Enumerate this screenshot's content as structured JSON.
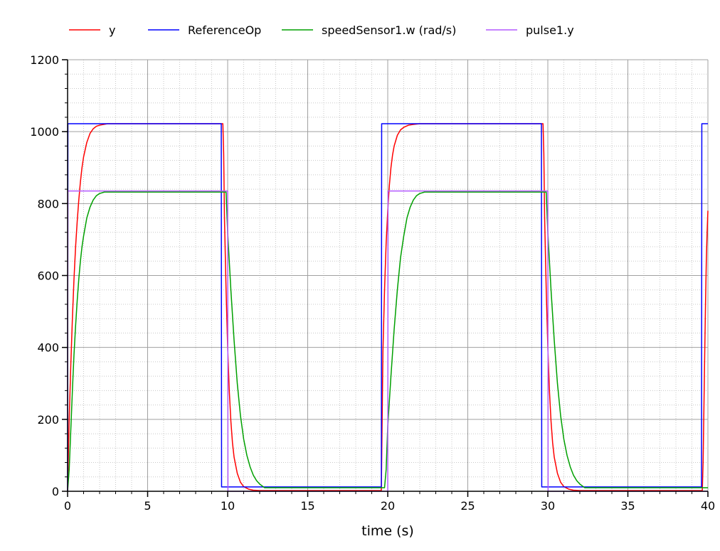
{
  "chart_data": {
    "type": "line",
    "title": "",
    "xlabel": "time (s)",
    "ylabel": "",
    "xlim": [
      0,
      40
    ],
    "ylim": [
      0,
      1200
    ],
    "x_ticks": [
      0,
      5,
      10,
      15,
      20,
      25,
      30,
      35,
      40
    ],
    "y_ticks": [
      0,
      200,
      400,
      600,
      800,
      1000,
      1200
    ],
    "x_tick_labels": [
      "0",
      "5",
      "10",
      "15",
      "20",
      "25",
      "30",
      "35",
      "40"
    ],
    "y_tick_labels": [
      "0",
      "200",
      "400",
      "600",
      "800",
      "1000",
      "1200"
    ],
    "grid": true,
    "legend_position": "top",
    "series": [
      {
        "name": "y",
        "color": "#ff0000",
        "x": [
          0,
          0.1,
          0.2,
          0.3,
          0.4,
          0.5,
          0.6,
          0.7,
          0.8,
          0.9,
          1.0,
          1.2,
          1.4,
          1.6,
          1.8,
          2.0,
          2.5,
          9.7,
          9.75,
          9.8,
          9.9,
          10.0,
          10.1,
          10.2,
          10.3,
          10.4,
          10.6,
          10.8,
          11.0,
          11.3,
          11.6,
          12.0,
          19.6,
          19.65,
          19.7,
          19.8,
          19.9,
          20.0,
          20.1,
          20.2,
          20.3,
          20.4,
          20.6,
          20.8,
          21.0,
          21.3,
          21.6,
          22.0,
          22.5,
          29.7,
          29.75,
          29.8,
          29.9,
          30.0,
          30.1,
          30.2,
          30.3,
          30.4,
          30.6,
          30.8,
          31.0,
          31.3,
          31.6,
          32.0,
          39.65,
          39.7,
          39.75,
          39.8,
          39.85,
          39.9,
          39.95,
          40.0
        ],
        "y": [
          0,
          200,
          350,
          480,
          590,
          680,
          750,
          810,
          860,
          900,
          930,
          970,
          995,
          1008,
          1015,
          1018,
          1022,
          1022,
          940,
          760,
          560,
          400,
          280,
          195,
          135,
          95,
          50,
          25,
          13,
          6,
          3,
          2,
          2,
          200,
          390,
          560,
          690,
          780,
          850,
          900,
          935,
          960,
          990,
          1005,
          1012,
          1018,
          1020,
          1022,
          1022,
          1022,
          940,
          760,
          560,
          400,
          280,
          195,
          135,
          95,
          50,
          25,
          13,
          6,
          3,
          2,
          2,
          80,
          230,
          380,
          520,
          640,
          720,
          780
        ]
      },
      {
        "name": "ReferenceOp",
        "color": "#0000ff",
        "x": [
          0,
          0.02,
          0.08,
          9.6,
          9.62,
          9.7,
          19.6,
          19.62,
          19.7,
          29.6,
          29.62,
          29.7,
          39.6,
          39.62,
          39.7,
          40.0
        ],
        "y": [
          0,
          1022,
          1022,
          1022,
          12,
          12,
          12,
          1022,
          1022,
          1022,
          12,
          12,
          12,
          1022,
          1022,
          1022
        ]
      },
      {
        "name": "speedSensor1.w (rad/s)",
        "color": "#00a000",
        "x": [
          0,
          0.1,
          0.2,
          0.3,
          0.4,
          0.5,
          0.6,
          0.7,
          0.8,
          0.9,
          1.0,
          1.2,
          1.4,
          1.6,
          1.8,
          2.0,
          2.3,
          9.9,
          10.0,
          10.2,
          10.4,
          10.6,
          10.8,
          11.0,
          11.2,
          11.4,
          11.6,
          11.8,
          12.0,
          12.3,
          19.8,
          19.9,
          20.0,
          20.2,
          20.4,
          20.6,
          20.8,
          21.0,
          21.2,
          21.4,
          21.6,
          21.8,
          22.0,
          22.3,
          29.9,
          30.0,
          30.2,
          30.4,
          30.6,
          30.8,
          31.0,
          31.2,
          31.4,
          31.6,
          31.8,
          32.0,
          32.3,
          39.8,
          40.0
        ],
        "y": [
          0,
          60,
          170,
          280,
          380,
          460,
          530,
          590,
          640,
          680,
          710,
          760,
          790,
          810,
          822,
          828,
          832,
          832,
          720,
          560,
          420,
          300,
          210,
          145,
          100,
          68,
          45,
          30,
          20,
          10,
          10,
          60,
          180,
          320,
          450,
          560,
          650,
          710,
          760,
          790,
          810,
          822,
          828,
          832,
          832,
          720,
          560,
          420,
          300,
          210,
          145,
          100,
          68,
          45,
          30,
          20,
          10,
          10,
          10
        ]
      },
      {
        "name": "pulse1.y",
        "color": "#b45aff",
        "x": [
          0,
          0.02,
          0.05,
          10.0,
          10.02,
          10.05,
          20.0,
          20.02,
          20.05,
          30.0,
          30.02,
          30.05,
          40.0
        ],
        "y": [
          0,
          835,
          835,
          835,
          0,
          0,
          0,
          835,
          835,
          835,
          0,
          0,
          0
        ]
      }
    ]
  }
}
